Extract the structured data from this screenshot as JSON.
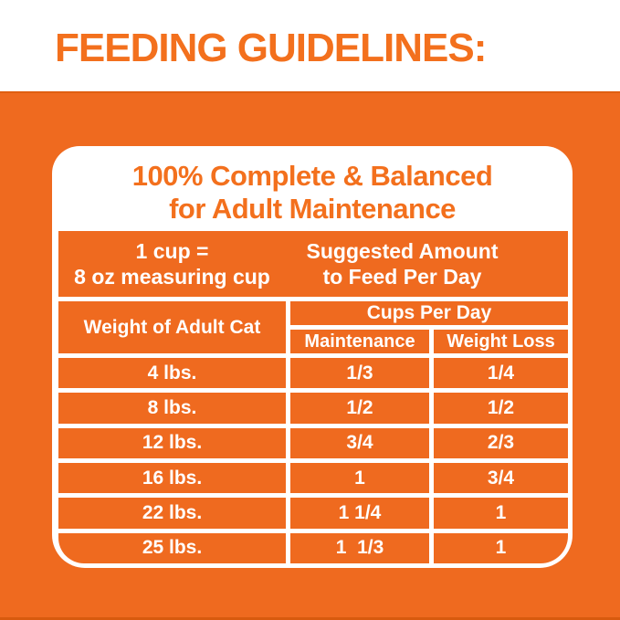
{
  "page": {
    "header_title": "FEEDING GUIDELINES:",
    "colors": {
      "orange_background": "#ef6a1f",
      "orange_text": "#f3701d",
      "cell_text_white": "#ffffff",
      "card_white": "#ffffff",
      "top_edge_gray": "#e3e3e3",
      "bottom_edge_dark_orange": "#d85a0e"
    }
  },
  "card": {
    "title_line1": "100% Complete & Balanced",
    "title_line2": "for Adult Maintenance",
    "cup_note_line1": "1 cup =",
    "cup_note_line2": "8 oz measuring cup",
    "suggested_line1": "Suggested Amount",
    "suggested_line2": "to Feed Per Day"
  },
  "table": {
    "weight_header": "Weight of Adult Cat",
    "cups_header": "Cups Per Day",
    "maintenance_header": "Maintenance",
    "weight_loss_header": "Weight Loss",
    "rows": [
      {
        "weight": "4 lbs.",
        "maintenance": "1/3",
        "weight_loss": "1/4"
      },
      {
        "weight": "8 lbs.",
        "maintenance": "1/2",
        "weight_loss": "1/2"
      },
      {
        "weight": "12 lbs.",
        "maintenance": "3/4",
        "weight_loss": "2/3"
      },
      {
        "weight": "16 lbs.",
        "maintenance": "1",
        "weight_loss": "3/4"
      },
      {
        "weight": "22 lbs.",
        "maintenance": "1 1/4",
        "weight_loss": "1"
      },
      {
        "weight": "25 lbs.",
        "maintenance": "1  1/3",
        "weight_loss": "1"
      }
    ]
  },
  "chart_data": {
    "type": "table",
    "title": "FEEDING GUIDELINES: 100% Complete & Balanced for Adult Maintenance",
    "note": "1 cup = 8 oz measuring cup; Suggested Amount to Feed Per Day",
    "columns": [
      "Weight of Adult Cat",
      "Cups Per Day - Maintenance",
      "Cups Per Day - Weight Loss"
    ],
    "categories": [
      "4 lbs.",
      "8 lbs.",
      "12 lbs.",
      "16 lbs.",
      "22 lbs.",
      "25 lbs."
    ],
    "series": [
      {
        "name": "Maintenance (cups per day)",
        "values": [
          "1/3",
          "1/2",
          "3/4",
          "1",
          "1 1/4",
          "1 1/3"
        ]
      },
      {
        "name": "Weight Loss (cups per day)",
        "values": [
          "1/4",
          "1/2",
          "2/3",
          "3/4",
          "1",
          "1"
        ]
      }
    ],
    "legend_position": "none",
    "grid": "white lines on orange cells"
  }
}
